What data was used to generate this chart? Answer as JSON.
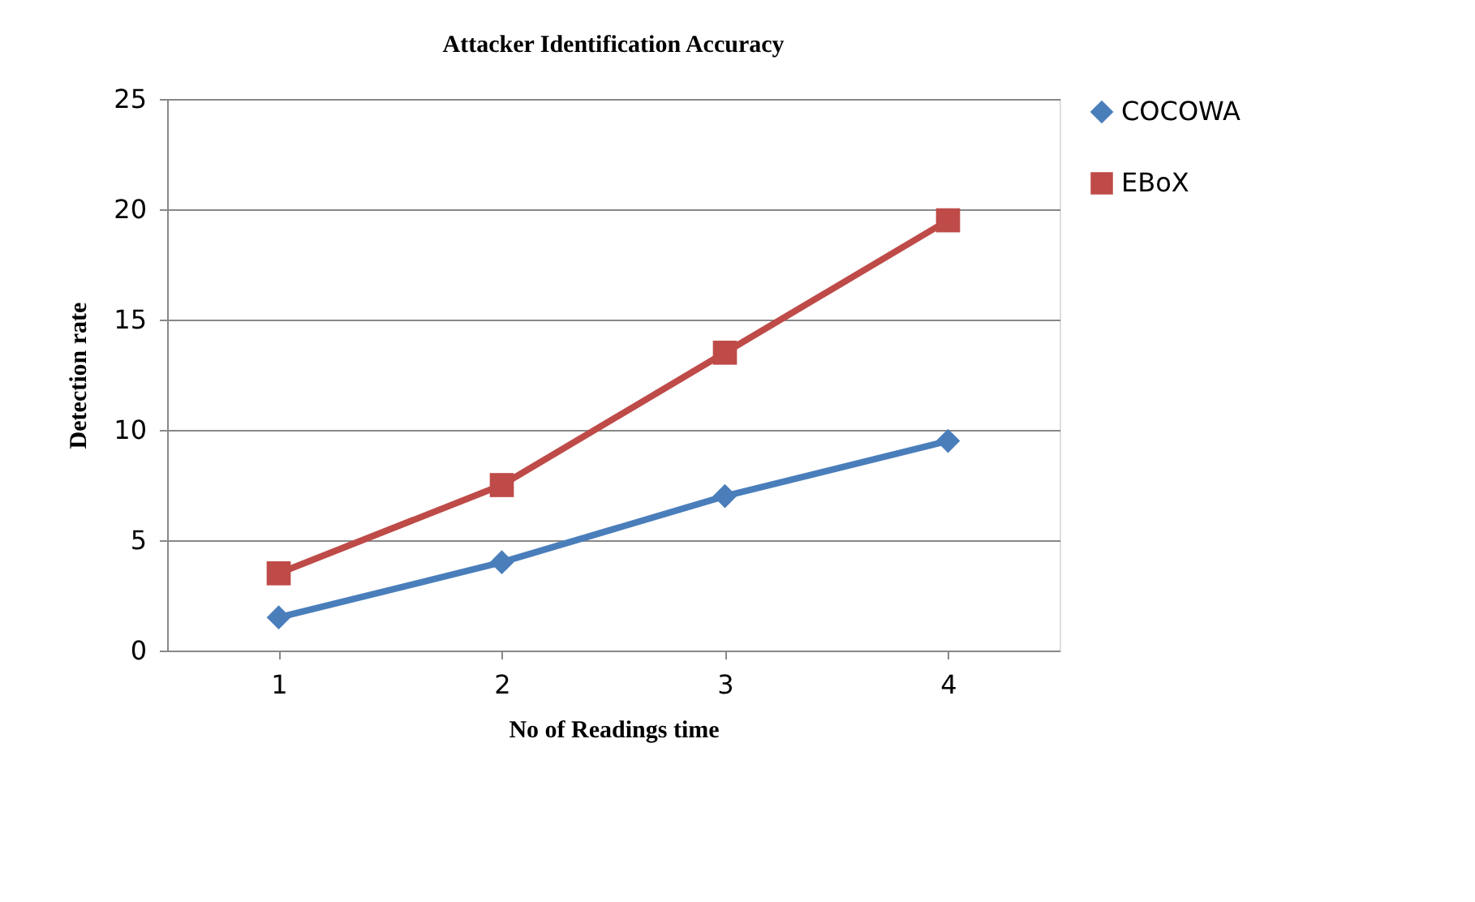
{
  "chart_data": {
    "type": "line",
    "title": "Attacker Identification Accuracy",
    "xlabel": "No of Readings time",
    "ylabel": "Detection rate",
    "categories": [
      "1",
      "2",
      "3",
      "4"
    ],
    "series": [
      {
        "name": "COCOWA",
        "color": "#4a7ebb",
        "marker": "diamond",
        "values": [
          1.5,
          4,
          7,
          9.5
        ]
      },
      {
        "name": "EBoX",
        "color": "#be4b48",
        "marker": "square",
        "values": [
          3.5,
          7.5,
          13.5,
          19.5
        ]
      }
    ],
    "ylim": [
      0,
      25
    ],
    "yticks": [
      0,
      5,
      10,
      15,
      20,
      25
    ],
    "grid": "y",
    "legend": "right",
    "line_style": "solid"
  }
}
